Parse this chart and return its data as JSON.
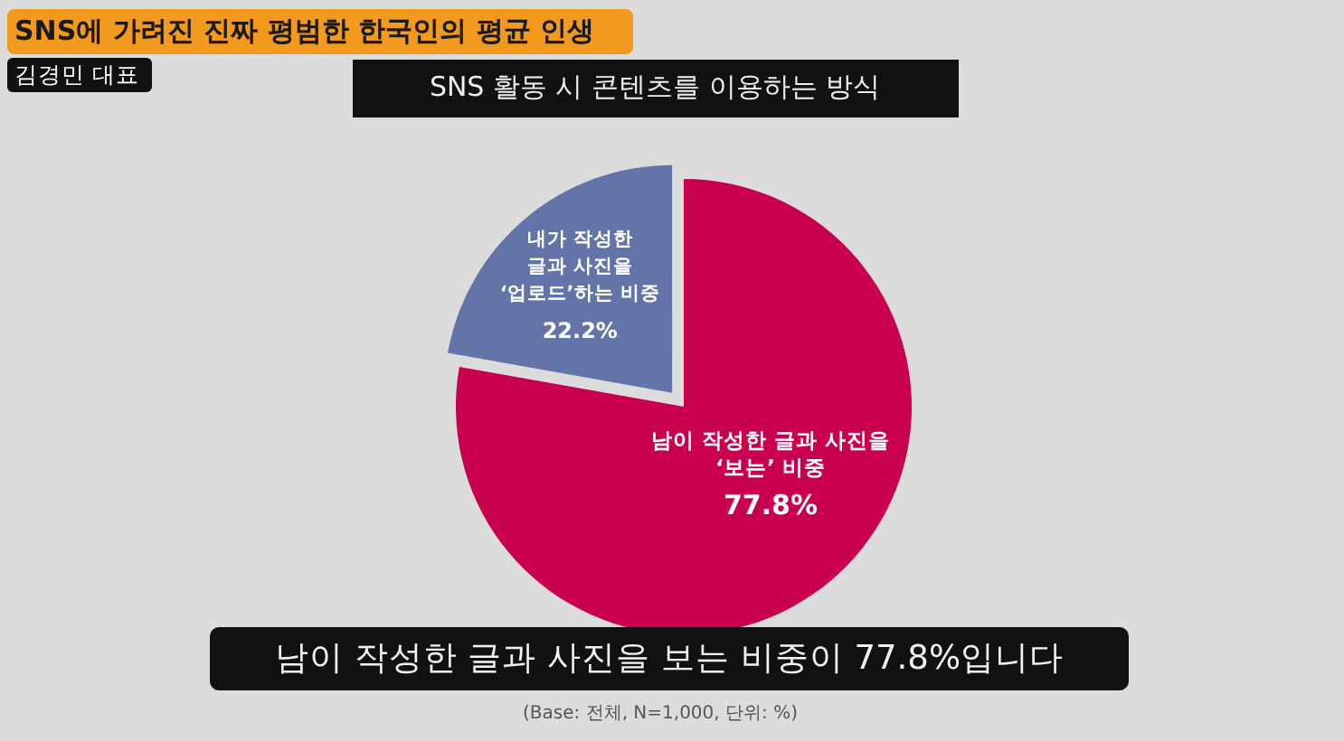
{
  "chart_data": {
    "type": "pie",
    "title": "SNS 활동 시 콘텐츠를 이용하는 방식",
    "categories": [
      "내가 작성한 글과 사진을 ‘업로드’하는 비중",
      "남이 작성한 글과 사진을 ‘보는’ 비중"
    ],
    "values": [
      22.2,
      77.8
    ],
    "colors": [
      "#6274a8",
      "#c8004e"
    ],
    "value_labels": [
      "22.2%",
      "77.8%"
    ],
    "annotations": [
      "SNS에 가려진 진짜 평범한 한국인의 평균 인생",
      "김경민 대표",
      "남이 작성한 글과 사진을 보는 비중이 77.8%입니다",
      "(Base: 전체, N=1,000, 단위: %)"
    ]
  }
}
